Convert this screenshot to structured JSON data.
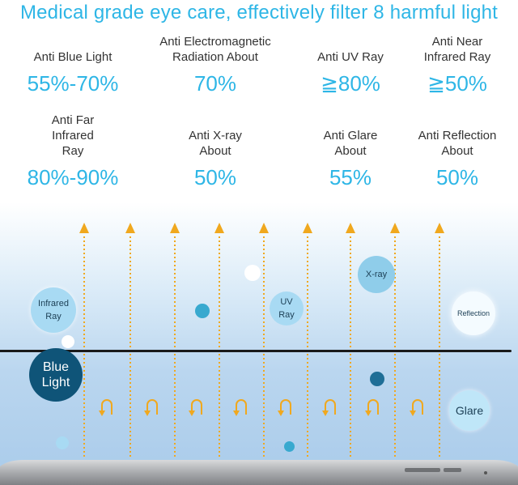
{
  "headline": "Medical grade eye care, effectively filter 8 harmful light",
  "stats": [
    {
      "label": "Anti Blue Light",
      "value": "55%-70%"
    },
    {
      "label": "Anti Electromagnetic Radiation About",
      "value": "70%"
    },
    {
      "label": "Anti UV Ray",
      "value": "≧80%"
    },
    {
      "label": "Anti Near Infrared Ray",
      "value": "≧50%"
    },
    {
      "label": "Anti Far Infrared Ray",
      "value": "80%-90%"
    },
    {
      "label": "Anti X-ray About",
      "value": "50%"
    },
    {
      "label": "Anti Glare About",
      "value": "55%"
    },
    {
      "label": "Anti Reflection About",
      "value": "50%"
    }
  ],
  "bubbles": {
    "infrared": "Infrared Ray",
    "uv": "UV Ray",
    "xray": "X-ray",
    "reflection": "Reflection",
    "blue_light": "Blue Light",
    "glare": "Glare"
  },
  "colors": {
    "accent": "#2eb6e6",
    "arrow": "#f0a81e",
    "text": "#333333",
    "dark_bubble": "#0f5478"
  },
  "icons": {
    "ray_arrow": "up-arrow-icon",
    "reflect": "u-turn-arrow-icon"
  }
}
